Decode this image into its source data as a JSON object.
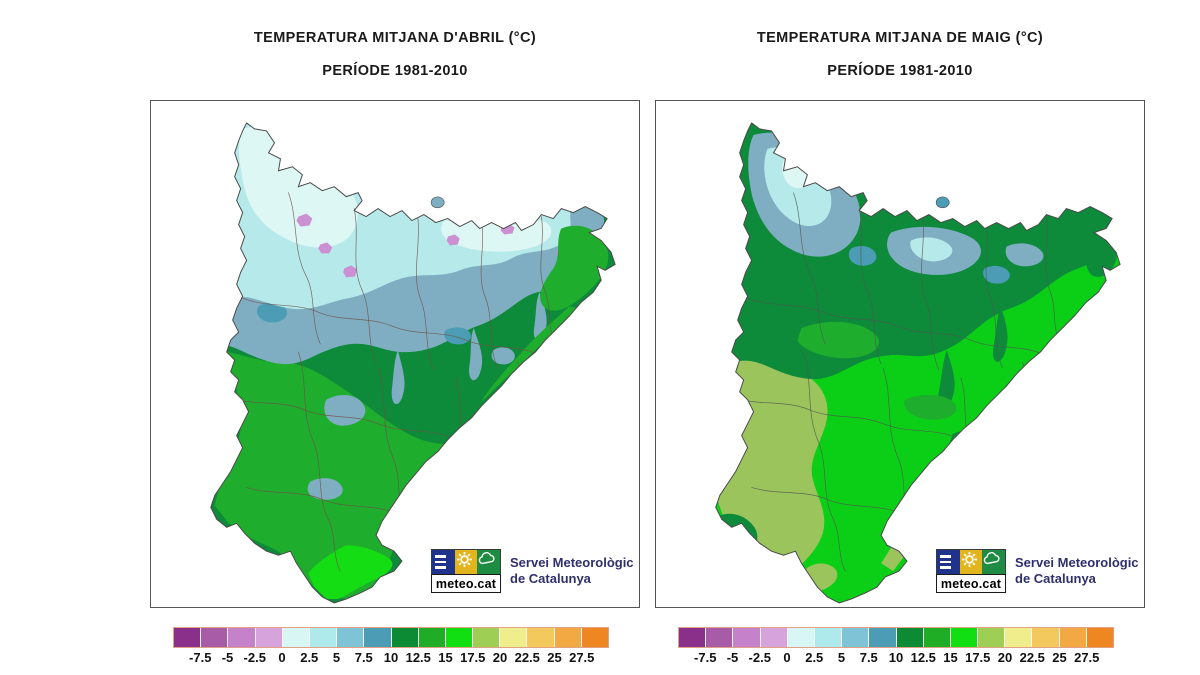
{
  "panels": [
    {
      "id": "abril",
      "title_line1": "TEMPERATURA MITJANA D'ABRIL (°C)",
      "title_line2": "PERÍODE 1981-2010"
    },
    {
      "id": "maig",
      "title_line1": "TEMPERATURA MITJANA DE MAIG (°C)",
      "title_line2": "PERÍODE 1981-2010"
    }
  ],
  "logo": {
    "brand": "meteo.cat",
    "org_line1": "Servei Meteorològic",
    "org_line2": "de Catalunya",
    "square_blue": "#20338c",
    "square_yellow": "#e2b51f",
    "square_green": "#1e8c42",
    "icons": [
      "menu-bars-icon",
      "sun-icon",
      "cloud-icon"
    ]
  },
  "legend": {
    "unit": "°C",
    "labels": [
      "-7.5",
      "-5",
      "-2.5",
      "0",
      "2.5",
      "5",
      "7.5",
      "10",
      "12.5",
      "15",
      "17.5",
      "20",
      "22.5",
      "25",
      "27.5"
    ],
    "colors": [
      "#8a2f8a",
      "#a85ca8",
      "#c581c9",
      "#d7a3dc",
      "#d7f6f4",
      "#aee9ec",
      "#7ec4d6",
      "#4b9cb4",
      "#0c8a34",
      "#1fad26",
      "#12df12",
      "#9ece53",
      "#f0ee8c",
      "#f3c95e",
      "#f2a943",
      "#ee8722"
    ],
    "bar_border_color": "#e2a183"
  },
  "maps": {
    "april": {
      "zones": {
        "frost": {
          "range_c": "-2.5 – 0",
          "color": "#cb90d2"
        },
        "coldest": {
          "range_c": "0 – 2.5",
          "color": "#ddf7f5"
        },
        "cold": {
          "range_c": "2.5 – 5",
          "color": "#b5e9ea"
        },
        "cool": {
          "range_c": "5 – 7.5",
          "color": "#7faec2"
        },
        "teal": {
          "range_c": "7.5 – 10",
          "color": "#4b9cb4"
        },
        "base": {
          "range_c": "10 – 12.5",
          "color": "#0d8a3a"
        },
        "warm": {
          "range_c": "12.5 – 15",
          "color": "#1ead2c"
        },
        "warmest": {
          "range_c": "15 – 17.5",
          "color": "#14dd14"
        }
      },
      "boundary_color": "#6e5148"
    },
    "may": {
      "zones": {
        "coldest": {
          "range_c": "0 – 2.5",
          "color": "#ddf7f5"
        },
        "cold": {
          "range_c": "2.5 – 5",
          "color": "#b5e9ea"
        },
        "cool": {
          "range_c": "5 – 7.5",
          "color": "#7faec2"
        },
        "teal": {
          "range_c": "7.5 – 10",
          "color": "#4b9cb4"
        },
        "dark": {
          "range_c": "10 – 12.5",
          "color": "#0d8a3a"
        },
        "warm": {
          "range_c": "12.5 – 15",
          "color": "#1ead2c"
        },
        "base": {
          "range_c": "15 – 17.5",
          "color": "#0bce17"
        },
        "olive": {
          "range_c": "17.5 – 20",
          "color": "#9cc45c"
        }
      },
      "boundary_color": "#4e5a50"
    }
  }
}
